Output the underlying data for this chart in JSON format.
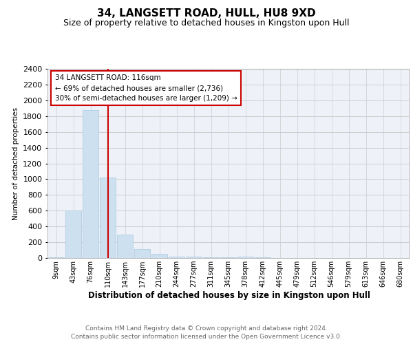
{
  "title": "34, LANGSETT ROAD, HULL, HU8 9XD",
  "subtitle": "Size of property relative to detached houses in Kingston upon Hull",
  "xlabel": "Distribution of detached houses by size in Kingston upon Hull",
  "ylabel": "Number of detached properties",
  "footer_line1": "Contains HM Land Registry data © Crown copyright and database right 2024.",
  "footer_line2": "Contains public sector information licensed under the Open Government Licence v3.0.",
  "bar_labels": [
    "9sqm",
    "43sqm",
    "76sqm",
    "110sqm",
    "143sqm",
    "177sqm",
    "210sqm",
    "244sqm",
    "277sqm",
    "311sqm",
    "345sqm",
    "378sqm",
    "412sqm",
    "445sqm",
    "479sqm",
    "512sqm",
    "546sqm",
    "579sqm",
    "613sqm",
    "646sqm",
    "680sqm"
  ],
  "bar_values": [
    10,
    600,
    1880,
    1020,
    295,
    115,
    50,
    20,
    15,
    10,
    5,
    20,
    5,
    0,
    0,
    0,
    0,
    0,
    0,
    0,
    0
  ],
  "bar_color": "#cce0f0",
  "bar_edge_color": "#aac8e0",
  "highlight_color": "#cc0000",
  "annotation_title": "34 LANGSETT ROAD: 116sqm",
  "annotation_line1": "← 69% of detached houses are smaller (2,736)",
  "annotation_line2": "30% of semi-detached houses are larger (1,209) →",
  "annotation_box_color": "#ffffff",
  "annotation_box_edge": "#cc0000",
  "ylim": [
    0,
    2400
  ],
  "yticks": [
    0,
    200,
    400,
    600,
    800,
    1000,
    1200,
    1400,
    1600,
    1800,
    2000,
    2200,
    2400
  ],
  "grid_color": "#cccccc",
  "bg_color": "#eef2f8",
  "title_fontsize": 11,
  "subtitle_fontsize": 9,
  "highlight_bar_index": 3
}
